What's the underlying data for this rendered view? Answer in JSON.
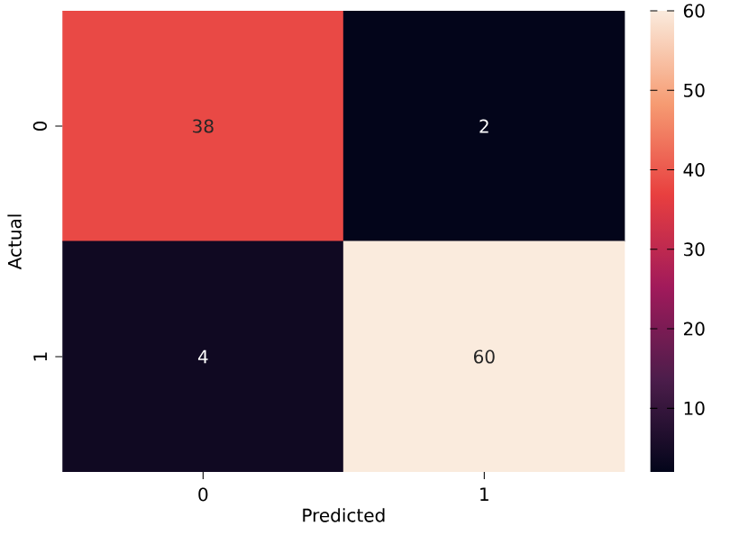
{
  "chart_data": {
    "type": "heatmap",
    "xlabel": "Predicted",
    "ylabel": "Actual",
    "categories": [
      "0",
      "1"
    ],
    "y_categories": [
      "0",
      "1"
    ],
    "cells": [
      [
        38,
        2
      ],
      [
        4,
        60
      ]
    ],
    "clim": [
      2,
      60
    ],
    "cticks": [
      10,
      20,
      30,
      40,
      50,
      60
    ],
    "data_labels": true
  }
}
